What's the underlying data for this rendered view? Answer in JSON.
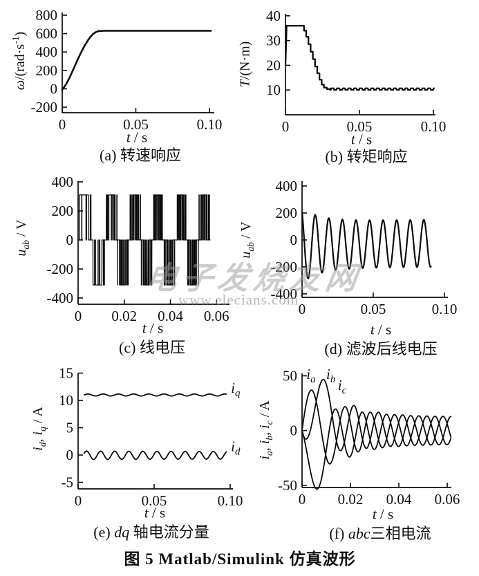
{
  "figure_caption": "图 5  Matlab/Simulink 仿真波形",
  "watermark": {
    "line1": "电子发烧友网",
    "line2": "www.elecians.com"
  },
  "chart_data": [
    {
      "id": "a",
      "type": "line",
      "caption_parts": [
        {
          "t": "(a) 转速响应"
        }
      ],
      "xlabel_parts": [
        {
          "t": "t",
          "i": 1
        },
        {
          "t": " / s"
        }
      ],
      "ylabel_parts": [
        {
          "t": "ω",
          "i": 1
        },
        {
          "t": "/(rad·s"
        },
        {
          "t": "-1",
          "sup": 1
        },
        {
          "t": ")"
        }
      ],
      "xlim": [
        0,
        0.1033
      ],
      "ylim": [
        -260,
        830
      ],
      "xticks": [
        {
          "v": 0,
          "t": "0"
        },
        {
          "v": 0.05,
          "t": "0.05"
        },
        {
          "v": 0.1,
          "t": "0.10"
        }
      ],
      "yticks": [
        {
          "v": 800,
          "t": "800"
        },
        {
          "v": 600,
          "t": "600"
        },
        {
          "v": 400,
          "t": "400"
        },
        {
          "v": 200,
          "t": "200"
        },
        {
          "v": 0,
          "t": "0"
        },
        {
          "v": -200,
          "t": "-200"
        }
      ],
      "series": [
        {
          "name": "omega",
          "type": "points",
          "lw": 2.6,
          "points": [
            [
              0,
              -10
            ],
            [
              0.0025,
              45
            ],
            [
              0.005,
              120
            ],
            [
              0.0075,
              210
            ],
            [
              0.01,
              300
            ],
            [
              0.0125,
              385
            ],
            [
              0.015,
              462
            ],
            [
              0.0175,
              528
            ],
            [
              0.019,
              562
            ],
            [
              0.021,
              597
            ],
            [
              0.023,
              618
            ],
            [
              0.025,
              628
            ],
            [
              0.028,
              631
            ],
            [
              0.04,
              631
            ],
            [
              0.06,
              631
            ],
            [
              0.08,
              631
            ],
            [
              0.101,
              631
            ]
          ]
        }
      ],
      "labels": []
    },
    {
      "id": "b",
      "type": "line",
      "caption_parts": [
        {
          "t": "(b) 转矩响应"
        }
      ],
      "xlabel_parts": [
        {
          "t": "t",
          "i": 1
        },
        {
          "t": " / s"
        }
      ],
      "ylabel_parts": [
        {
          "t": "T",
          "i": 1
        },
        {
          "t": "/(N·m)"
        }
      ],
      "xlim": [
        0,
        0.1014
      ],
      "ylim": [
        0,
        40.8
      ],
      "xticks": [
        {
          "v": 0,
          "t": "0"
        },
        {
          "v": 0.05,
          "t": "0.05"
        },
        {
          "v": 0.1,
          "t": "0.10"
        }
      ],
      "yticks": [
        {
          "v": 40,
          "t": "40"
        },
        {
          "v": 30,
          "t": "30"
        },
        {
          "v": 20,
          "t": "20"
        },
        {
          "v": 10,
          "t": "10"
        }
      ],
      "series": [
        {
          "name": "torque-transient",
          "type": "points",
          "lw": 2.3,
          "points": [
            [
              0,
              20
            ],
            [
              0.0008,
              36
            ],
            [
              0.0125,
              36
            ],
            [
              0.0125,
              34
            ],
            [
              0.014,
              34
            ],
            [
              0.014,
              31.5
            ],
            [
              0.0155,
              31.5
            ],
            [
              0.0155,
              28.5
            ],
            [
              0.017,
              28.5
            ],
            [
              0.017,
              25.5
            ],
            [
              0.0185,
              25.5
            ],
            [
              0.0185,
              22.5
            ],
            [
              0.02,
              22.5
            ],
            [
              0.02,
              19.5
            ],
            [
              0.0215,
              19.5
            ],
            [
              0.0215,
              16.8
            ],
            [
              0.023,
              16.8
            ],
            [
              0.023,
              14.2
            ],
            [
              0.0245,
              14.2
            ],
            [
              0.0245,
              12.2
            ],
            [
              0.026,
              12.2
            ],
            [
              0.026,
              11
            ],
            [
              0.028,
              11
            ],
            [
              0.028,
              10.4
            ],
            [
              0.03,
              10.4
            ]
          ]
        },
        {
          "name": "torque-steady",
          "type": "ripple",
          "lw": 2.1,
          "t0": 0.03,
          "t1": 0.1005,
          "mean": 10.4,
          "amp": 0.3,
          "freq": 260,
          "n": 800
        }
      ],
      "labels": []
    },
    {
      "id": "c",
      "type": "line",
      "caption_parts": [
        {
          "t": "(c) 线电压"
        }
      ],
      "xlabel_parts": [
        {
          "t": "t",
          "i": 1
        },
        {
          "t": " / s"
        }
      ],
      "ylabel_parts": [
        {
          "t": "u",
          "i": 1
        },
        {
          "t": "ab",
          "sub": 1,
          "i": 1
        },
        {
          "t": " / V"
        }
      ],
      "xlim": [
        0,
        0.0656
      ],
      "ylim": [
        -443,
        405
      ],
      "xticks": [
        {
          "v": 0,
          "t": "0"
        },
        {
          "v": 0.02,
          "t": "0.02"
        },
        {
          "v": 0.04,
          "t": "0.04"
        },
        {
          "v": 0.06,
          "t": "0.06"
        }
      ],
      "yticks": [
        {
          "v": 400,
          "t": "400"
        },
        {
          "v": 200,
          "t": "200"
        },
        {
          "v": 0,
          "t": "0"
        },
        {
          "v": -200,
          "t": "-200"
        },
        {
          "v": -400,
          "t": "-400"
        }
      ],
      "series": [
        {
          "name": "line-voltage-pwm",
          "type": "pwm",
          "lw": 1.3,
          "t0": 0,
          "t1": 0.0572,
          "vdc": 310,
          "m0": 1.4,
          "m1": 0.88,
          "mtau": 0.01,
          "f0": 70,
          "f1": 100,
          "framp": 0.02,
          "fc": 780,
          "n": 6200
        }
      ],
      "labels": []
    },
    {
      "id": "d",
      "type": "line",
      "caption_parts": [
        {
          "t": "(d) 滤波后线电压"
        }
      ],
      "xlabel_parts": [
        {
          "t": "t",
          "i": 1
        },
        {
          "t": " / s"
        }
      ],
      "ylabel_parts": [
        {
          "t": "u",
          "i": 1
        },
        {
          "t": "ab",
          "sub": 1,
          "i": 1
        },
        {
          "t": " / V"
        }
      ],
      "xlim": [
        0,
        0.1024
      ],
      "ylim": [
        -426,
        436
      ],
      "xticks": [
        {
          "v": 0,
          "t": "0"
        },
        {
          "v": 0.05,
          "t": "0.05"
        },
        {
          "v": 0.1,
          "t": "0.10"
        }
      ],
      "yticks": [
        {
          "v": 400,
          "t": "400"
        },
        {
          "v": 200,
          "t": "200"
        },
        {
          "v": 0,
          "t": "0"
        },
        {
          "v": -200,
          "t": "-200"
        },
        {
          "v": -400,
          "t": "-400"
        }
      ],
      "series": [
        {
          "name": "filtered-line-voltage",
          "type": "wave",
          "lw": 2.2,
          "t0": 0,
          "t1": 0.0905,
          "A0": 280,
          "A1": 175,
          "tau": 0.012,
          "mean": 0,
          "off0": -38,
          "offTau": 0.22,
          "f0": 95,
          "f1": 105,
          "framp": 0.012,
          "phase0": 2.1,
          "n": 1600
        }
      ],
      "labels": []
    },
    {
      "id": "e",
      "type": "line",
      "caption_parts": [
        {
          "t": "(e) "
        },
        {
          "t": "dq",
          "i": 1
        },
        {
          "t": " 轴电流分量"
        }
      ],
      "xlabel_parts": [
        {
          "t": "t",
          "i": 1
        },
        {
          "t": " / s"
        }
      ],
      "ylabel_parts": [
        {
          "t": "i",
          "i": 1
        },
        {
          "t": "d",
          "sub": 1,
          "i": 1
        },
        {
          "t": ", "
        },
        {
          "t": "i",
          "i": 1
        },
        {
          "t": "q",
          "sub": 1,
          "i": 1
        },
        {
          "t": " / A"
        }
      ],
      "xlim": [
        0,
        0.1018
      ],
      "ylim": [
        -6.2,
        14.95
      ],
      "xticks": [
        {
          "v": 0,
          "t": "0"
        },
        {
          "v": 0.05,
          "t": "0.05"
        },
        {
          "v": 0.1,
          "t": "0.10"
        }
      ],
      "yticks": [
        {
          "v": 15,
          "t": "15"
        },
        {
          "v": 10,
          "t": "10"
        },
        {
          "v": 5,
          "t": "5"
        },
        {
          "v": 0,
          "t": "0"
        },
        {
          "v": -5,
          "t": "-5"
        }
      ],
      "series": [
        {
          "name": "iq",
          "type": "wave",
          "lw": 1.8,
          "t0": 0.004,
          "t1": 0.0975,
          "A0": 0.18,
          "A1": 0.18,
          "tau": 1,
          "mean": 11,
          "off0": 0,
          "offTau": 1,
          "f0": 100,
          "f1": 100,
          "framp": 1,
          "phase0": 0,
          "n": 900
        },
        {
          "name": "id",
          "type": "wave",
          "lw": 1.8,
          "t0": 0.004,
          "t1": 0.0975,
          "A0": 0.78,
          "A1": 0.68,
          "tau": 0.05,
          "mean": -0.05,
          "off0": 0,
          "offTau": 1,
          "f0": 108,
          "f1": 108,
          "framp": 1,
          "phase0": 0.5,
          "n": 900
        }
      ],
      "labels": [
        {
          "t": "i",
          "sub": "q",
          "x": 0.1005,
          "y": 11.4
        },
        {
          "t": "i",
          "sub": "d",
          "x": 0.1005,
          "y": 0.7
        }
      ]
    },
    {
      "id": "f",
      "type": "line",
      "caption_parts": [
        {
          "t": "(f) "
        },
        {
          "t": "abc",
          "i": 1
        },
        {
          "t": "三相电流"
        }
      ],
      "xlabel_parts": [
        {
          "t": "t",
          "i": 1
        },
        {
          "t": " / s"
        }
      ],
      "ylabel_parts": [
        {
          "t": "i",
          "i": 1
        },
        {
          "t": "a",
          "sub": 1,
          "i": 1
        },
        {
          "t": ", "
        },
        {
          "t": "i",
          "i": 1
        },
        {
          "t": "b",
          "sub": 1,
          "i": 1
        },
        {
          "t": ", "
        },
        {
          "t": "i",
          "i": 1
        },
        {
          "t": "c",
          "sub": 1,
          "i": 1
        },
        {
          "t": " / A"
        }
      ],
      "xlim": [
        0,
        0.0617
      ],
      "ylim": [
        -52,
        52.2
      ],
      "xticks": [
        {
          "v": 0,
          "t": "0"
        },
        {
          "v": 0.02,
          "t": "0.02"
        },
        {
          "v": 0.04,
          "t": "0.04"
        },
        {
          "v": 0.06,
          "t": "0.06"
        }
      ],
      "yticks": [
        {
          "v": 50,
          "t": "50"
        },
        {
          "v": 0,
          "t": "0"
        },
        {
          "v": -50,
          "t": "-50"
        }
      ],
      "series": [
        {
          "name": "ia",
          "type": "wave",
          "lw": 1.8,
          "t0": 0,
          "t1": 0.0615,
          "A0": 52,
          "A1": 12.5,
          "tau": 0.013,
          "mean": 0,
          "off0": 0,
          "offTau": 1,
          "f0": 50,
          "f1": 100,
          "framp": 0.024,
          "phase0": 0.15,
          "phi": 0,
          "dcComp": true,
          "tauDC": 0.0075,
          "n": 1500
        },
        {
          "name": "ib",
          "type": "wave",
          "lw": 1.8,
          "t0": 0,
          "t1": 0.0615,
          "A0": 52,
          "A1": 12.5,
          "tau": 0.013,
          "mean": 0,
          "off0": 0,
          "offTau": 1,
          "f0": 50,
          "f1": 100,
          "framp": 0.024,
          "phase0": 0.15,
          "phi": -2.094,
          "dcComp": true,
          "tauDC": 0.0075,
          "n": 1500
        },
        {
          "name": "ic",
          "type": "wave",
          "lw": 1.8,
          "t0": 0,
          "t1": 0.0615,
          "A0": 52,
          "A1": 12.5,
          "tau": 0.013,
          "mean": 0,
          "off0": 0,
          "offTau": 1,
          "f0": 50,
          "f1": 100,
          "framp": 0.024,
          "phase0": 0.15,
          "phi": -4.189,
          "dcComp": true,
          "tauDC": 0.0075,
          "n": 1500
        }
      ],
      "labels": [
        {
          "t": "i",
          "sub": "a",
          "x": 0.0018,
          "y": 47
        },
        {
          "t": "i",
          "sub": "b",
          "x": 0.01,
          "y": 47
        },
        {
          "t": "i",
          "sub": "c",
          "x": 0.0148,
          "y": 37
        }
      ]
    }
  ]
}
